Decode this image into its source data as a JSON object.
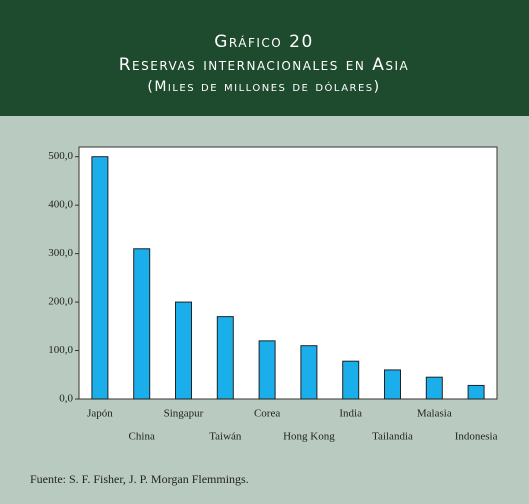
{
  "chart_data": {
    "type": "bar",
    "title": "Gráfico 20",
    "subtitle": "Reservas internacionales en Asia",
    "units": "(Miles de millones de dólares)",
    "source": "Fuente: S. F. Fisher, J. P. Morgan Flemmings.",
    "categories": [
      "Japón",
      "China",
      "Singapur",
      "Taiwán",
      "Corea",
      "Hong Kong",
      "India",
      "Tailandia",
      "Malasia",
      "Indonesia"
    ],
    "values": [
      500,
      310,
      200,
      170,
      120,
      110,
      78,
      60,
      45,
      28
    ],
    "color": "#1aaeea",
    "ylim": [
      0,
      520
    ],
    "yticks": [
      {
        "value": 0,
        "label": "0,0"
      },
      {
        "value": 100,
        "label": "100,0"
      },
      {
        "value": 200,
        "label": "200,0"
      },
      {
        "value": 300,
        "label": "300,0"
      },
      {
        "value": 400,
        "label": "400,0"
      },
      {
        "value": 500,
        "label": "500,0"
      }
    ]
  }
}
